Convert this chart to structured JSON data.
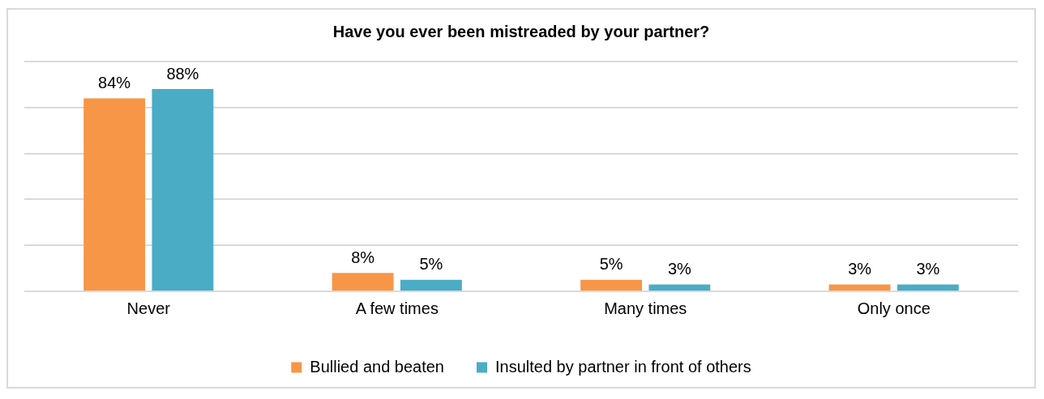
{
  "chart_data": {
    "type": "bar",
    "title": "Have you ever been mistreaded by your partner?",
    "categories": [
      "Never",
      "A few times",
      "Many times",
      "Only once"
    ],
    "series": [
      {
        "name": "Bullied and beaten",
        "color": "#f79646",
        "values": [
          84,
          8,
          5,
          3
        ],
        "value_labels": [
          "84%",
          "8%",
          "5%",
          "3%"
        ]
      },
      {
        "name": "Insulted by partner in front of others",
        "color": "#4bacc6",
        "values": [
          88,
          5,
          3,
          3
        ],
        "value_labels": [
          "88%",
          "5%",
          "3%",
          "3%"
        ]
      }
    ],
    "tick_labels": "x",
    "grid": "y",
    "legend": "bottom"
  }
}
